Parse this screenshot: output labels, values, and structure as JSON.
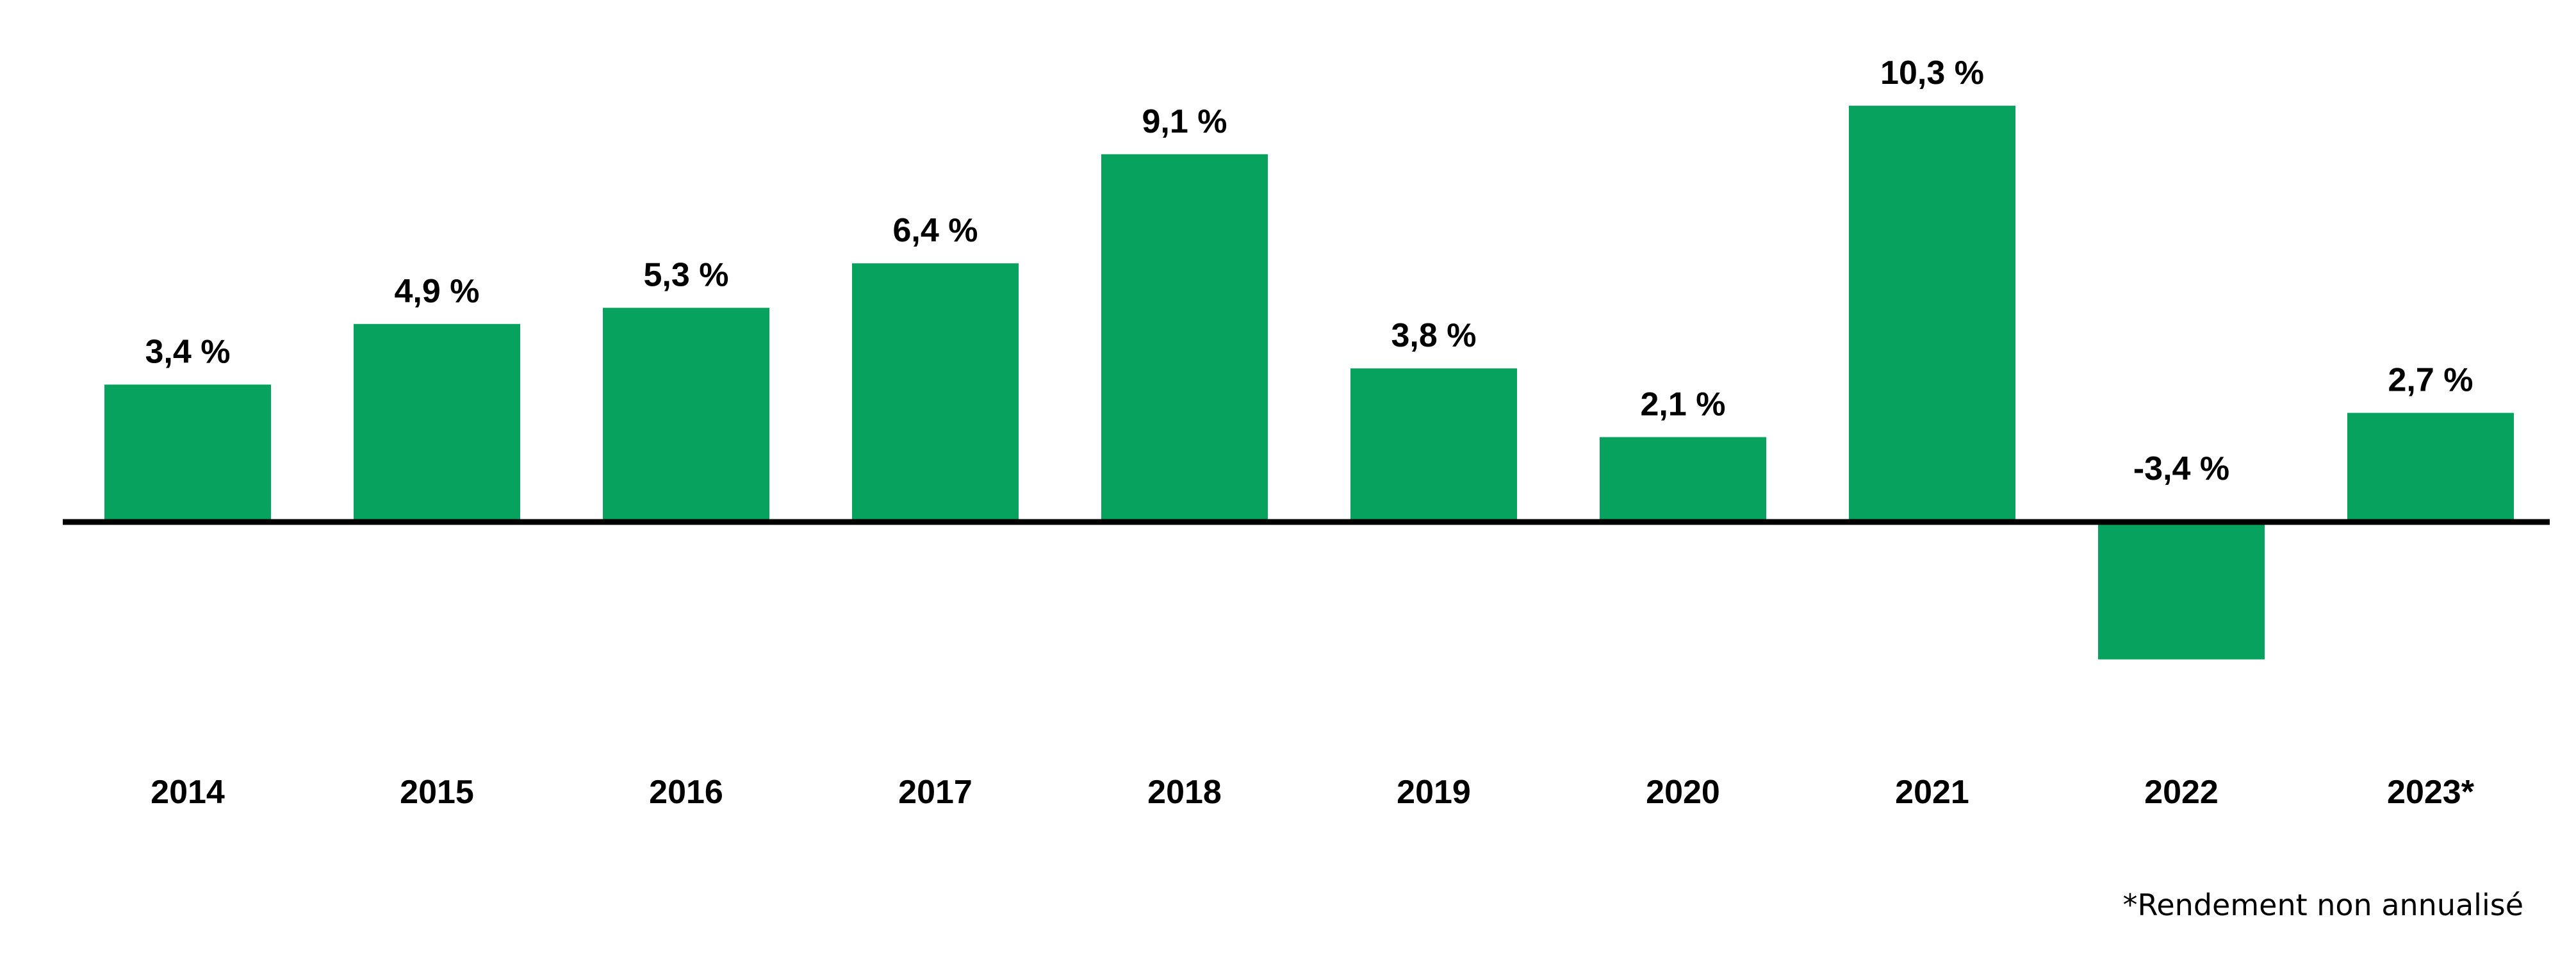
{
  "chart_data": {
    "type": "bar",
    "title": "",
    "xlabel": "",
    "ylabel": "",
    "categories": [
      "2014",
      "2015",
      "2016",
      "2017",
      "2018",
      "2019",
      "2020",
      "2021",
      "2022",
      "2023*"
    ],
    "values": [
      3.4,
      4.9,
      5.3,
      6.4,
      9.1,
      3.8,
      2.1,
      10.3,
      -3.4,
      2.7
    ],
    "value_labels": [
      "3,4 %",
      "4,9 %",
      "5,3 %",
      "6,4 %",
      "9,1 %",
      "3,8 %",
      "2,1 %",
      "10,3 %",
      "-3,4 %",
      "2,7 %"
    ],
    "ylim": [
      -3.4,
      10.3
    ],
    "grid": false,
    "legend": "none",
    "bar_color": "#06A25E",
    "axis_color": "#000000"
  },
  "footnote": "*Rendement non annualisé"
}
